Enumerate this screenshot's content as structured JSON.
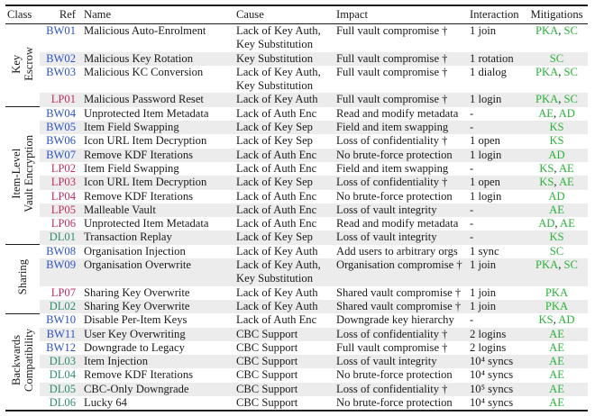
{
  "columns": [
    "Class",
    "Ref",
    "Name",
    "Cause",
    "Impact",
    "Interaction",
    "Mitigations"
  ],
  "colors": {
    "ref_bw": "#2d52c4",
    "ref_lp": "#c02f62",
    "ref_dl": "#2e8b6f",
    "mitigation": "#2bb23a",
    "stripe": "#ececec",
    "rule": "#1c1c1c"
  },
  "groups": [
    {
      "class_label": "Key\nEscrow",
      "rows": [
        {
          "ref": "BW01",
          "name": "Malicious Auto-Enrolment",
          "cause": "Lack of Key Auth,\nKey Substitution",
          "impact": "Full vault compromise †",
          "interaction": "1 join",
          "mitigations": [
            "PKA",
            "SC"
          ]
        },
        {
          "ref": "BW02",
          "name": "Malicious Key Rotation",
          "cause": "Key Substitution",
          "impact": "Full vault compromise †",
          "interaction": "1 rotation",
          "mitigations": [
            "SC"
          ]
        },
        {
          "ref": "BW03",
          "name": "Malicious KC Conversion",
          "cause": "Lack of Key Auth,\nKey Substitution",
          "impact": "Full vault compromise †",
          "interaction": "1 dialog",
          "mitigations": [
            "PKA",
            "SC"
          ]
        },
        {
          "ref": "LP01",
          "name": "Malicious Password Reset",
          "cause": "Lack of Key Auth",
          "impact": "Full vault compromise †",
          "interaction": "1 login",
          "mitigations": [
            "PKA",
            "SC"
          ]
        }
      ]
    },
    {
      "class_label": "Item-Level\nVault Encryption",
      "rows": [
        {
          "ref": "BW04",
          "name": "Unprotected Item Metadata",
          "cause": "Lack of Auth Enc",
          "impact": "Read and modify metadata",
          "interaction": "-",
          "mitigations": [
            "AE",
            "AD"
          ]
        },
        {
          "ref": "BW05",
          "name": "Item Field Swapping",
          "cause": "Lack of Key Sep",
          "impact": "Field and item swapping",
          "interaction": "-",
          "mitigations": [
            "KS"
          ]
        },
        {
          "ref": "BW06",
          "name": "Icon URL Item Decryption",
          "cause": "Lack of Key Sep",
          "impact": "Loss of confidentiality †",
          "interaction": "1 open",
          "mitigations": [
            "KS"
          ]
        },
        {
          "ref": "BW07",
          "name": "Remove KDF Iterations",
          "cause": "Lack of Auth Enc",
          "impact": "No brute-force protection",
          "interaction": "1 login",
          "mitigations": [
            "AD"
          ]
        },
        {
          "ref": "LP02",
          "name": "Item Field Swapping",
          "cause": "Lack of Auth Enc",
          "impact": "Field and item swapping",
          "interaction": "-",
          "mitigations": [
            "KS",
            "AE"
          ]
        },
        {
          "ref": "LP03",
          "name": "Icon URL Item Decryption",
          "cause": "Lack of Key Sep",
          "impact": "Loss of confidentiality †",
          "interaction": "1 open",
          "mitigations": [
            "KS",
            "AE"
          ]
        },
        {
          "ref": "LP04",
          "name": "Remove KDF Iterations",
          "cause": "Lack of Auth Enc",
          "impact": "No brute-force protection",
          "interaction": "1 login",
          "mitigations": [
            "AD"
          ]
        },
        {
          "ref": "LP05",
          "name": "Malleable Vault",
          "cause": "Lack of Auth Enc",
          "impact": "Loss of vault integrity",
          "interaction": "-",
          "mitigations": [
            "AE"
          ]
        },
        {
          "ref": "LP06",
          "name": "Unprotected Item Metadata",
          "cause": "Lack of Auth Enc",
          "impact": "Read and modify metadata",
          "interaction": "-",
          "mitigations": [
            "AD",
            "AE"
          ]
        },
        {
          "ref": "DL01",
          "name": "Transaction Replay",
          "cause": "Lack of Key Sep",
          "impact": "Loss of vault integrity",
          "interaction": "-",
          "mitigations": [
            "KS"
          ]
        }
      ]
    },
    {
      "class_label": "Sharing",
      "rows": [
        {
          "ref": "BW08",
          "name": "Organisation Injection",
          "cause": "Lack of Key Auth",
          "impact": "Add users to arbitrary orgs",
          "interaction": "1 sync",
          "mitigations": [
            "SC"
          ]
        },
        {
          "ref": "BW09",
          "name": "Organisation Overwrite",
          "cause": "Lack of Key Auth,\nKey Substitution",
          "impact": "Organisation compromise †",
          "interaction": "1 join",
          "mitigations": [
            "PKA",
            "SC"
          ]
        },
        {
          "ref": "LP07",
          "name": "Sharing Key Overwrite",
          "cause": "Lack of Key Auth",
          "impact": "Shared vault compromise †",
          "interaction": "1 join",
          "mitigations": [
            "PKA"
          ]
        },
        {
          "ref": "DL02",
          "name": "Sharing Key Overwrite",
          "cause": "Lack of Key Auth",
          "impact": "Shared vault compromise †",
          "interaction": "1 join",
          "mitigations": [
            "PKA"
          ]
        }
      ]
    },
    {
      "class_label": "Backwards\nCompatibility",
      "rows": [
        {
          "ref": "BW10",
          "name": "Disable Per-Item Keys",
          "cause": "Lack of Auth Enc",
          "impact": "Downgrade key hierarchy",
          "interaction": "-",
          "mitigations": [
            "KS",
            "AD"
          ]
        },
        {
          "ref": "BW11",
          "name": "User Key Overwriting",
          "cause": "CBC Support",
          "impact": "Loss of confidentiality †",
          "interaction": "2 logins",
          "mitigations": [
            "AE"
          ]
        },
        {
          "ref": "BW12",
          "name": "Downgrade to Legacy",
          "cause": "CBC Support",
          "impact": "Full vault compromise †",
          "interaction": "2 logins",
          "mitigations": [
            "AE"
          ]
        },
        {
          "ref": "DL03",
          "name": "Item Injection",
          "cause": "CBC Support",
          "impact": "Loss of vault integrity",
          "interaction": "10⁴ syncs",
          "mitigations": [
            "AE"
          ]
        },
        {
          "ref": "DL04",
          "name": "Remove KDF Iterations",
          "cause": "CBC Support",
          "impact": "No brute-force protection",
          "interaction": "10⁴ syncs",
          "mitigations": [
            "AE"
          ]
        },
        {
          "ref": "DL05",
          "name": "CBC-Only Downgrade",
          "cause": "CBC Support",
          "impact": "Loss of confidentiality †",
          "interaction": "10⁵ syncs",
          "mitigations": [
            "AE"
          ]
        },
        {
          "ref": "DL06",
          "name": "Lucky 64",
          "cause": "CBC Support",
          "impact": "No brute-force protection",
          "interaction": "10⁴ syncs",
          "mitigations": [
            "AE"
          ]
        }
      ]
    }
  ]
}
